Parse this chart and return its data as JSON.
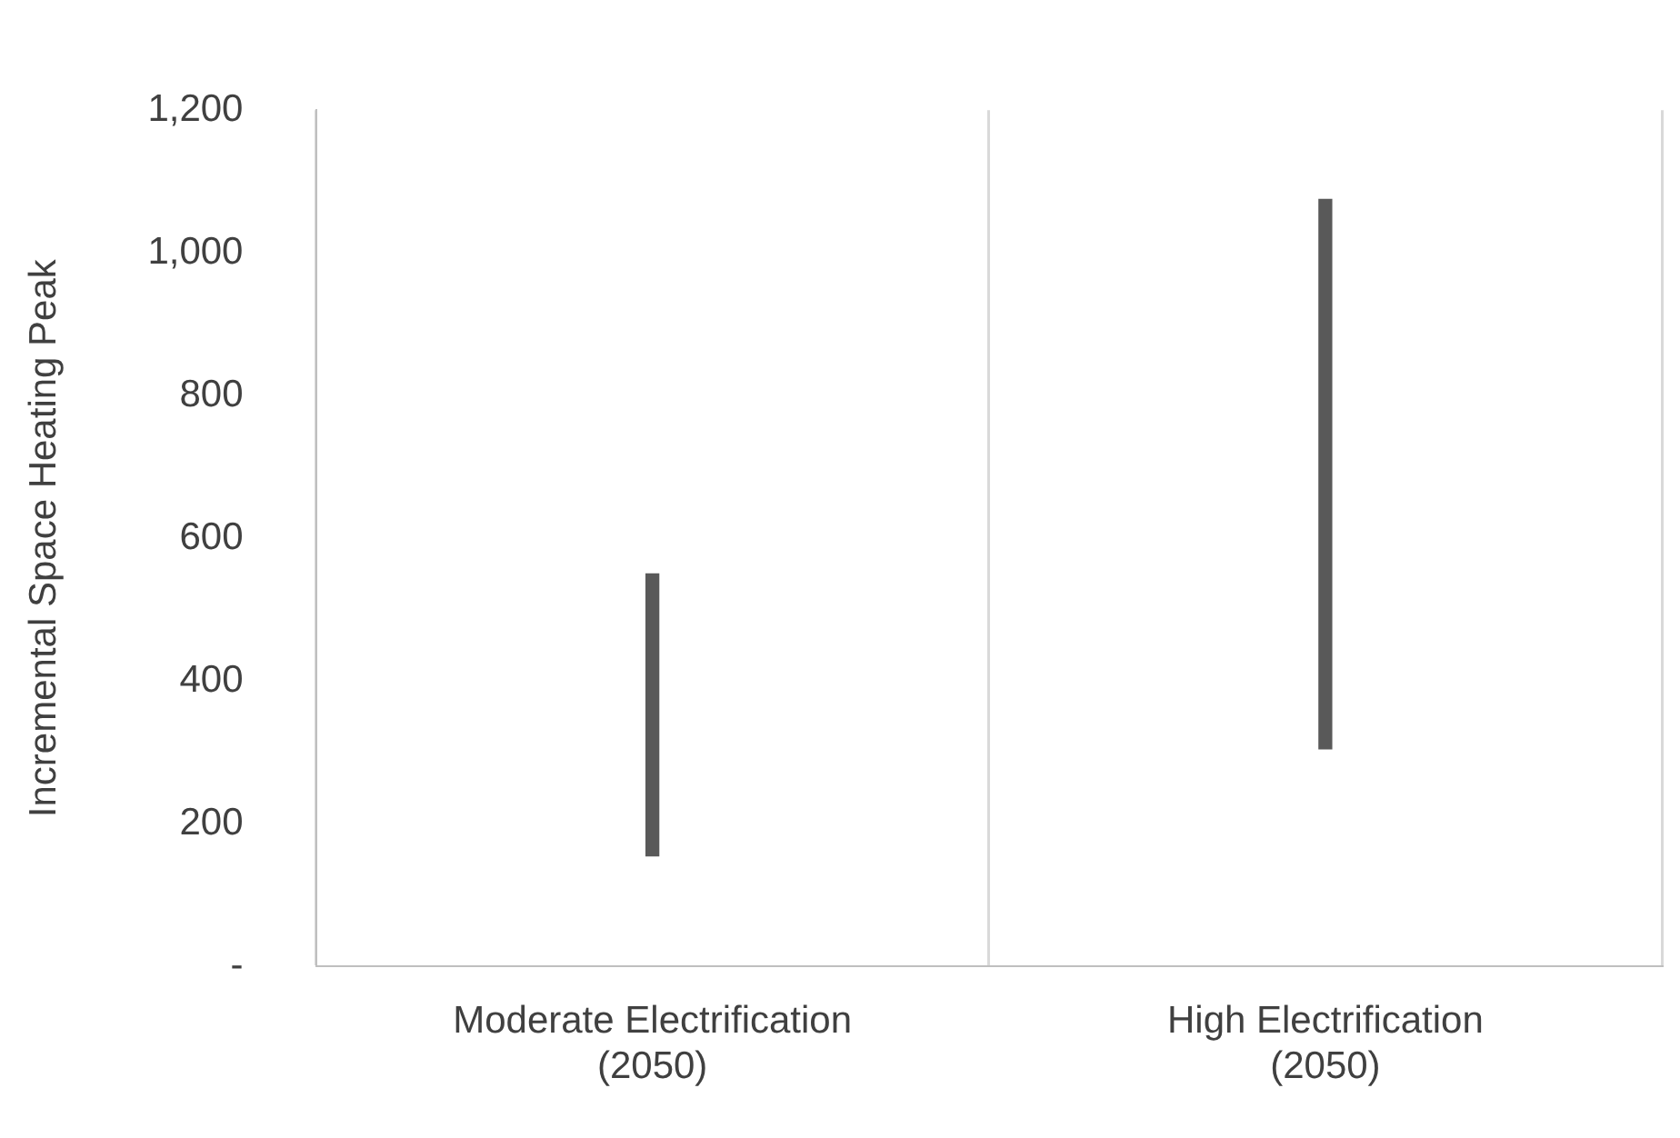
{
  "chart_data": {
    "type": "bar",
    "ylabel": "Incremental Space Heating Peak",
    "categories": [
      "Moderate Electrification\n(2050)",
      "High Electrification\n(2050)"
    ],
    "base": [
      155,
      305
    ],
    "values": [
      395,
      770
    ],
    "color": "#595959",
    "ylim": [
      0,
      1200
    ],
    "yticks": [
      {
        "value": 0,
        "label": "-"
      },
      {
        "value": 200,
        "label": "200"
      },
      {
        "value": 400,
        "label": "400"
      },
      {
        "value": 600,
        "label": "600"
      },
      {
        "value": 800,
        "label": "800"
      },
      {
        "value": 1000,
        "label": "1,000"
      },
      {
        "value": 1200,
        "label": "1,200"
      }
    ],
    "grid": "x",
    "legend": false
  }
}
